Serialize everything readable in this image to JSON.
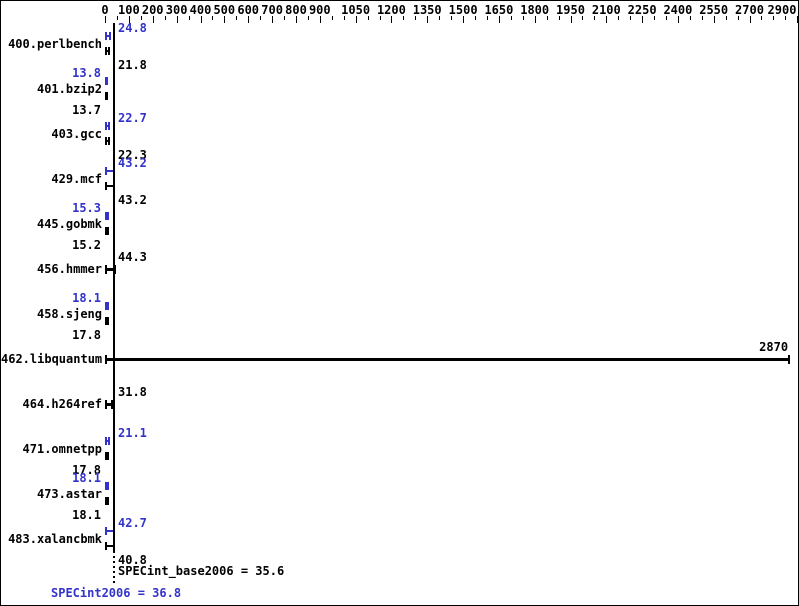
{
  "chart_data": {
    "type": "bar",
    "orientation": "horizontal",
    "title": "",
    "xlabel": "",
    "ylabel": "",
    "axis": {
      "min": 0,
      "max": 2900,
      "labeled_ticks": [
        0,
        100,
        200,
        300,
        400,
        500,
        600,
        700,
        800,
        900,
        1050,
        1200,
        1350,
        1500,
        1650,
        1800,
        1950,
        2100,
        2250,
        2400,
        2550,
        2700,
        2900
      ],
      "minor_tick_step": 50,
      "position": "top",
      "grid": false
    },
    "series_legend": {
      "peak_color_meaning": "SPECint2006 (peak) ratio",
      "base_color_meaning": "SPECint_base2006 ratio"
    },
    "benchmarks": [
      {
        "name": "400.perlbench",
        "peak": 24.8,
        "base": 21.8
      },
      {
        "name": "401.bzip2",
        "peak": 13.8,
        "base": 13.7
      },
      {
        "name": "403.gcc",
        "peak": 22.7,
        "base": 22.3
      },
      {
        "name": "429.mcf",
        "peak": 43.2,
        "base": 43.2
      },
      {
        "name": "445.gobmk",
        "peak": 15.3,
        "base": 15.2
      },
      {
        "name": "456.hmmer",
        "peak": null,
        "base": 44.3
      },
      {
        "name": "458.sjeng",
        "peak": 18.1,
        "base": 17.8
      },
      {
        "name": "462.libquantum",
        "peak": null,
        "base": 2870
      },
      {
        "name": "464.h264ref",
        "peak": null,
        "base": 31.8
      },
      {
        "name": "471.omnetpp",
        "peak": 21.1,
        "base": 17.8
      },
      {
        "name": "473.astar",
        "peak": 18.1,
        "base": 18.1
      },
      {
        "name": "483.xalancbmk",
        "peak": 42.7,
        "base": 40.8
      }
    ],
    "summary": {
      "base_label": "SPECint_base2006 = 35.6",
      "base_value": 35.6,
      "peak_label": "SPECint2006 = 36.8",
      "peak_value": 36.8
    },
    "colors": {
      "peak": "#3333cc",
      "base": "#000000",
      "background": "#ffffff",
      "border": "#000000"
    }
  }
}
